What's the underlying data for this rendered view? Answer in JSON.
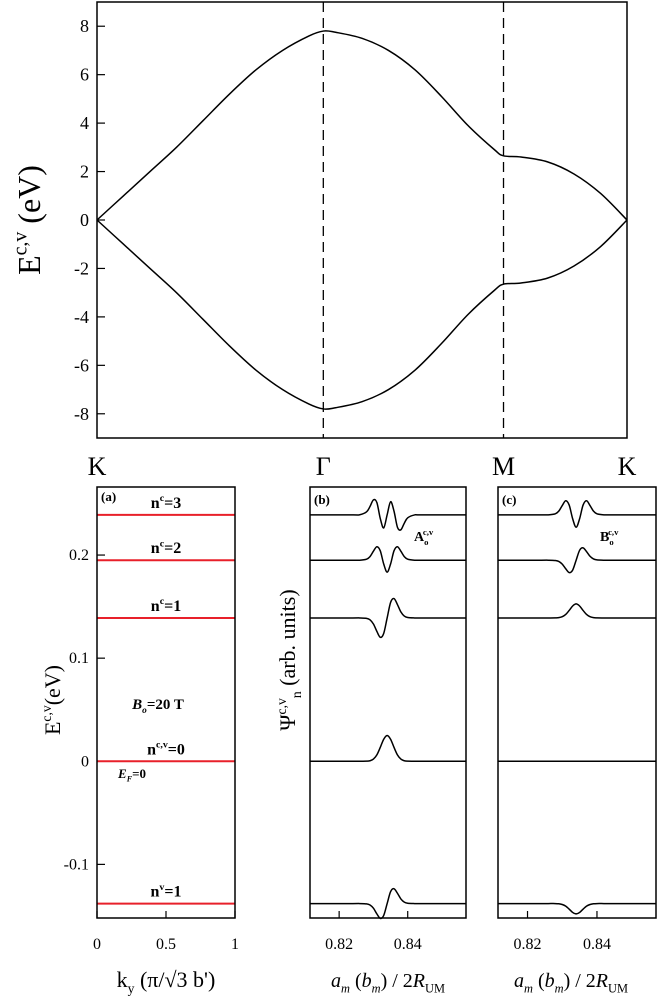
{
  "chart_data": [
    {
      "type": "line",
      "ylabel": [
        {
          "text": "E"
        },
        {
          "text": "c,v",
          "style": "sup"
        },
        {
          "text": " (eV)"
        }
      ],
      "xlim": [
        0,
        1
      ],
      "xticks": [
        {
          "value": 0,
          "label": "K"
        },
        {
          "value": 0.427,
          "label": "Γ"
        },
        {
          "value": 0.767,
          "label": "M"
        },
        {
          "value": 1,
          "label": "K"
        }
      ],
      "ylim": [
        -9,
        9
      ],
      "yticks": [
        -8,
        -6,
        -4,
        -2,
        0,
        2,
        4,
        6,
        8
      ],
      "x": [
        0,
        0.05,
        0.1,
        0.15,
        0.2,
        0.25,
        0.3,
        0.35,
        0.4,
        0.427,
        0.45,
        0.5,
        0.55,
        0.6,
        0.65,
        0.7,
        0.75,
        0.767,
        0.8,
        0.85,
        0.9,
        0.95,
        1
      ],
      "series": [
        {
          "color": "#000000",
          "values": [
            0,
            1.0,
            2.0,
            3.0,
            4.1,
            5.2,
            6.2,
            7.0,
            7.6,
            7.8,
            7.75,
            7.5,
            7.0,
            6.2,
            5.1,
            3.9,
            2.9,
            2.65,
            2.6,
            2.4,
            1.9,
            1.1,
            0
          ]
        },
        {
          "color": "#000000",
          "values": [
            0,
            -1.0,
            -2.0,
            -3.0,
            -4.1,
            -5.2,
            -6.2,
            -7.0,
            -7.6,
            -7.8,
            -7.75,
            -7.5,
            -7.0,
            -6.2,
            -5.1,
            -3.9,
            -2.9,
            -2.65,
            -2.6,
            -2.4,
            -1.9,
            -1.1,
            0
          ]
        }
      ]
    },
    {
      "type": "hline",
      "ylabel": [
        {
          "text": "E"
        },
        {
          "text": "c,v",
          "style": "sup"
        },
        {
          "text": "(eV)"
        }
      ],
      "xlabel": [
        {
          "text": "k"
        },
        {
          "text": "y",
          "style": "sub"
        },
        {
          "text": " (π/√3 b')"
        }
      ],
      "xlim": [
        0,
        1
      ],
      "xticks": [
        0,
        0.5,
        1
      ],
      "ylim": [
        -0.152,
        0.266
      ],
      "yticks": [
        -0.1,
        0,
        0.1,
        0.2
      ],
      "categories": [
        [
          {
            "text": "n"
          },
          {
            "text": "c",
            "style": "sup"
          },
          {
            "text": "=3"
          }
        ],
        [
          {
            "text": "n"
          },
          {
            "text": "c",
            "style": "sup"
          },
          {
            "text": "=2"
          }
        ],
        [
          {
            "text": "n"
          },
          {
            "text": "c",
            "style": "sup"
          },
          {
            "text": "=1"
          }
        ],
        [
          {
            "text": "n"
          },
          {
            "text": "c,v",
            "style": "sup"
          },
          {
            "text": "=0"
          }
        ],
        [
          {
            "text": "n"
          },
          {
            "text": "v",
            "style": "sup"
          },
          {
            "text": "=1"
          }
        ]
      ],
      "values": [
        0.239,
        0.195,
        0.139,
        0,
        -0.138
      ],
      "color": "#e8202a",
      "annotations": [
        [
          {
            "text": "(a)"
          }
        ],
        [
          {
            "text": "B",
            "style": "italic"
          },
          {
            "text": "o",
            "style": "sub-italic"
          },
          {
            "text": "=20 T"
          }
        ],
        [
          {
            "text": "E",
            "style": "italic"
          },
          {
            "text": "F",
            "style": "sub-italic"
          },
          {
            "text": "=0"
          }
        ]
      ]
    },
    {
      "type": "line",
      "title": "(b)",
      "annotation": [
        {
          "text": "A"
        },
        {
          "text": "o",
          "style": "sub"
        },
        {
          "text": "c,v",
          "style": "sup"
        }
      ],
      "ylabel": [
        {
          "text": "Ψ"
        },
        {
          "text": "c,v",
          "style": "sup"
        },
        {
          "text": "n",
          "style": "sub"
        },
        {
          "text": " (arb. units)"
        }
      ],
      "xlabel": [
        {
          "text": "a",
          "style": "italic"
        },
        {
          "text": "m",
          "style": "sub-italic"
        },
        {
          "text": " ("
        },
        {
          "text": "b",
          "style": "italic"
        },
        {
          "text": "m",
          "style": "sub-italic"
        },
        {
          "text": ") / 2"
        },
        {
          "text": "R",
          "style": "italic"
        },
        {
          "text": "UM",
          "style": "sub"
        }
      ],
      "xlim": [
        0.8115,
        0.857
      ],
      "xticks": [
        0.82,
        0.84
      ],
      "ylim": [
        -0.152,
        0.266
      ],
      "x": [
        0.8115,
        0.824,
        0.826,
        0.828,
        0.829,
        0.83,
        0.831,
        0.832,
        0.833,
        0.834,
        0.835,
        0.836,
        0.837,
        0.838,
        0.839,
        0.84,
        0.842,
        0.844,
        0.857
      ],
      "series": [
        {
          "color": "#000000",
          "values": [
            0.239,
            0.239,
            0.2391,
            0.2419,
            0.2471,
            0.2535,
            0.251,
            0.2354,
            0.2263,
            0.239,
            0.2517,
            0.2426,
            0.227,
            0.2245,
            0.2309,
            0.2361,
            0.2389,
            0.239,
            0.239
          ]
        },
        {
          "color": "#000000",
          "values": [
            0.195,
            0.195,
            0.195,
            0.196,
            0.1985,
            0.2037,
            0.2081,
            0.2041,
            0.1913,
            0.1835,
            0.1913,
            0.2041,
            0.2081,
            0.2037,
            0.1985,
            0.196,
            0.195,
            0.195,
            0.195
          ]
        },
        {
          "color": "#000000",
          "values": [
            0.139,
            0.139,
            0.139,
            0.1386,
            0.1372,
            0.1331,
            0.126,
            0.1202,
            0.124,
            0.139,
            0.154,
            0.1578,
            0.152,
            0.1449,
            0.1408,
            0.1394,
            0.139,
            0.139,
            0.139
          ]
        },
        {
          "color": "#000000",
          "values": [
            0,
            0,
            0,
            0.0001,
            0.0005,
            0.0021,
            0.0062,
            0.0135,
            0.0214,
            0.025,
            0.0214,
            0.0135,
            0.0062,
            0.0021,
            0.0005,
            0.0001,
            0,
            0,
            0
          ]
        },
        {
          "color": "#000000",
          "values": [
            -0.138,
            -0.138,
            -0.138,
            -0.1383,
            -0.1394,
            -0.1425,
            -0.148,
            -0.1524,
            -0.1495,
            -0.138,
            -0.1265,
            -0.1236,
            -0.128,
            -0.1335,
            -0.1366,
            -0.1377,
            -0.138,
            -0.138,
            -0.138
          ]
        }
      ]
    },
    {
      "type": "line",
      "title": "(c)",
      "annotation": [
        {
          "text": "B"
        },
        {
          "text": "o",
          "style": "sub"
        },
        {
          "text": "c,v",
          "style": "sup"
        }
      ],
      "xlabel": [
        {
          "text": "a",
          "style": "italic"
        },
        {
          "text": "m",
          "style": "sub-italic"
        },
        {
          "text": " ("
        },
        {
          "text": "b",
          "style": "italic"
        },
        {
          "text": "m",
          "style": "sub-italic"
        },
        {
          "text": ") / 2"
        },
        {
          "text": "R",
          "style": "italic"
        },
        {
          "text": "UM",
          "style": "sub"
        }
      ],
      "xlim": [
        0.8115,
        0.857
      ],
      "xticks": [
        0.82,
        0.84
      ],
      "ylim": [
        -0.152,
        0.266
      ],
      "x": [
        0.8115,
        0.824,
        0.826,
        0.828,
        0.829,
        0.83,
        0.831,
        0.832,
        0.833,
        0.834,
        0.835,
        0.836,
        0.837,
        0.838,
        0.839,
        0.84,
        0.842,
        0.844,
        0.857
      ],
      "series": [
        {
          "color": "#000000",
          "values": [
            0.239,
            0.239,
            0.239,
            0.24,
            0.2426,
            0.248,
            0.2527,
            0.2485,
            0.2352,
            0.227,
            0.2352,
            0.2485,
            0.2527,
            0.248,
            0.2426,
            0.24,
            0.239,
            0.239,
            0.239
          ]
        },
        {
          "color": "#000000",
          "values": [
            0.195,
            0.195,
            0.195,
            0.1947,
            0.1938,
            0.1912,
            0.1867,
            0.183,
            0.1854,
            0.195,
            0.2046,
            0.207,
            0.2033,
            0.1988,
            0.1962,
            0.1953,
            0.195,
            0.195,
            0.195
          ]
        },
        {
          "color": "#000000",
          "values": [
            0.139,
            0.139,
            0.139,
            0.1391,
            0.1393,
            0.1402,
            0.1424,
            0.1463,
            0.1506,
            0.1526,
            0.1506,
            0.1463,
            0.1424,
            0.1402,
            0.1393,
            0.1391,
            0.139,
            0.139,
            0.139
          ]
        },
        {
          "color": "#000000",
          "values": [
            0,
            0,
            0,
            0,
            0,
            0,
            0,
            0,
            0,
            0,
            0,
            0,
            0,
            0,
            0,
            0,
            0,
            0,
            0
          ]
        },
        {
          "color": "#000000",
          "values": [
            -0.138,
            -0.138,
            -0.138,
            -0.138,
            -0.1382,
            -0.1389,
            -0.1405,
            -0.1434,
            -0.1466,
            -0.148,
            -0.1466,
            -0.1434,
            -0.1405,
            -0.1389,
            -0.1382,
            -0.138,
            -0.138,
            -0.138,
            -0.138
          ]
        }
      ]
    }
  ]
}
